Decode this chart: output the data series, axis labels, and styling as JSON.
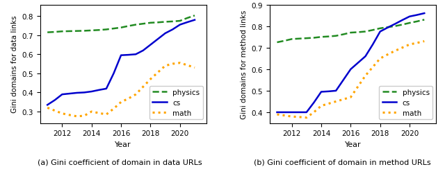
{
  "years": [
    2011,
    2011.5,
    2012,
    2012.5,
    2013,
    2013.5,
    2014,
    2014.5,
    2015,
    2015.5,
    2016,
    2016.5,
    2017,
    2017.5,
    2018,
    2018.5,
    2019,
    2019.5,
    2020,
    2020.5,
    2021
  ],
  "data_links": {
    "physics": [
      0.715,
      0.717,
      0.72,
      0.721,
      0.722,
      0.723,
      0.725,
      0.727,
      0.73,
      0.735,
      0.74,
      0.748,
      0.755,
      0.76,
      0.765,
      0.767,
      0.77,
      0.772,
      0.775,
      0.79,
      0.803
    ],
    "cs": [
      0.335,
      0.36,
      0.39,
      0.394,
      0.398,
      0.4,
      0.405,
      0.413,
      0.42,
      0.5,
      0.595,
      0.597,
      0.6,
      0.62,
      0.65,
      0.68,
      0.71,
      0.73,
      0.755,
      0.768,
      0.78
    ],
    "math": [
      0.32,
      0.305,
      0.29,
      0.282,
      0.275,
      0.278,
      0.3,
      0.292,
      0.285,
      0.315,
      0.35,
      0.368,
      0.39,
      0.43,
      0.47,
      0.505,
      0.54,
      0.55,
      0.555,
      0.543,
      0.53
    ]
  },
  "method_links": {
    "physics": [
      0.725,
      0.732,
      0.74,
      0.742,
      0.744,
      0.746,
      0.75,
      0.752,
      0.755,
      0.762,
      0.77,
      0.772,
      0.775,
      0.782,
      0.79,
      0.795,
      0.8,
      0.807,
      0.815,
      0.822,
      0.83
    ],
    "cs": [
      0.4,
      0.4,
      0.4,
      0.4,
      0.4,
      0.445,
      0.495,
      0.497,
      0.5,
      0.55,
      0.6,
      0.63,
      0.66,
      0.715,
      0.775,
      0.793,
      0.81,
      0.828,
      0.845,
      0.852,
      0.86
    ],
    "math": [
      0.39,
      0.385,
      0.38,
      0.378,
      0.375,
      0.4,
      0.43,
      0.44,
      0.45,
      0.46,
      0.47,
      0.52,
      0.57,
      0.61,
      0.65,
      0.668,
      0.685,
      0.7,
      0.715,
      0.722,
      0.73
    ]
  },
  "physics_color": "#228B22",
  "cs_color": "#0000CD",
  "math_color": "#FFA500",
  "ylabel_left": "Gini domains for data links",
  "ylabel_right": "Gini domains for method links",
  "xlabel": "Year",
  "caption_left": "(a) Gini coefficient of domain in data URLs",
  "caption_right": "(b) Gini coefficient of domain in method URLs",
  "xlim": [
    2010.5,
    2021.8
  ],
  "ylim_left": [
    0.24,
    0.86
  ],
  "ylim_right": [
    0.35,
    0.9
  ],
  "xticks": [
    2012,
    2014,
    2016,
    2018,
    2020
  ]
}
